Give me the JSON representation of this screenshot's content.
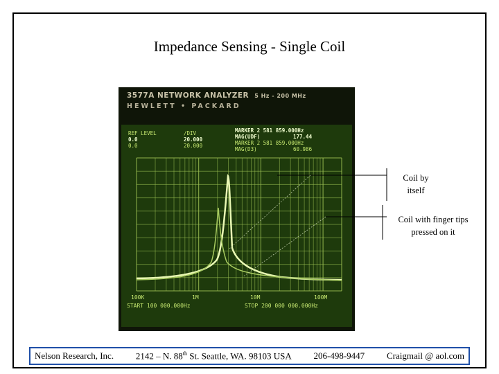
{
  "slide": {
    "title": "Impedance Sensing - Single Coil"
  },
  "instrument": {
    "model": "3577A NETWORK ANALYZER",
    "range": "5 Hz - 200 MHz",
    "brand": "HEWLETT • PACKARD",
    "ref_level_label": "REF LEVEL",
    "div_label": "/DIV",
    "ref_level_1": "0.0",
    "ref_level_2": "0.0",
    "div_1": "20.000",
    "div_2": "20.000",
    "marker_1_label": "MARKER 2 581 859.000Hz",
    "marker_1_mag_label": "MAG(UDF)",
    "marker_1_mag": "177.44",
    "marker_2_label": "MARKER 2 581 859.000Hz",
    "marker_2_mag_label": "MAG(D3)",
    "marker_2_mag": "60.986",
    "x_ticks": [
      "100K",
      "1M",
      "10M",
      "100M"
    ],
    "start": "START 100 000.000Hz",
    "stop": "STOP 200 000 000.000Hz"
  },
  "callouts": {
    "coil_alone": "Coil by itself",
    "coil_finger": "Coil with finger tips pressed on it"
  },
  "footer": {
    "company": "Nelson Research, Inc.",
    "address_pre": "2142 – N. 88",
    "address_sup": "th",
    "address_post": " St. Seattle, WA. 98103  USA",
    "phone": "206-498-9447",
    "email": "Craigmail @ aol.com"
  }
}
